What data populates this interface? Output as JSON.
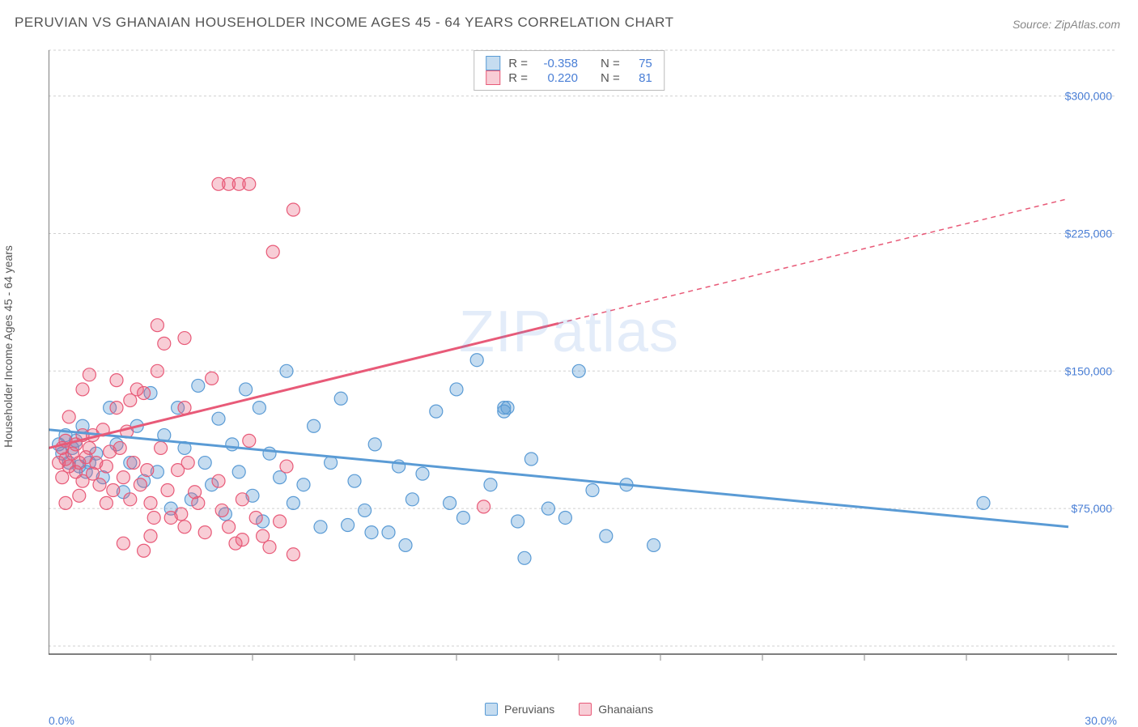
{
  "title": "PERUVIAN VS GHANAIAN HOUSEHOLDER INCOME AGES 45 - 64 YEARS CORRELATION CHART",
  "source": "Source: ZipAtlas.com",
  "watermark": "ZIPatlas",
  "y_axis_label": "Householder Income Ages 45 - 64 years",
  "chart": {
    "type": "scatter",
    "background_color": "#ffffff",
    "grid_color": "#d0d0d0",
    "grid_dash": "3,3",
    "axis_color": "#888888",
    "xlim": [
      0,
      30
    ],
    "ylim": [
      0,
      325000
    ],
    "x_tick_labels": {
      "left": "0.0%",
      "right": "30.0%"
    },
    "x_label_color": "#4a7fd6",
    "y_tick_values": [
      75000,
      150000,
      225000,
      300000
    ],
    "y_tick_labels": [
      "$75,000",
      "$150,000",
      "$225,000",
      "$300,000"
    ],
    "y_tick_color": "#4a7fd6",
    "y_tick_fontsize": 14,
    "x_minor_ticks": [
      3,
      6,
      9,
      12,
      15,
      18,
      21,
      24,
      27,
      30
    ],
    "marker_radius": 8,
    "marker_stroke_width": 1.2,
    "marker_fill_opacity": 0.35,
    "trend_line_width": 3,
    "series": [
      {
        "name": "Peruvians",
        "color": "#5a9bd5",
        "fill": "rgba(90,155,213,0.35)",
        "r": -0.358,
        "n": 75,
        "trend": {
          "x1": 0,
          "y1": 118000,
          "x2": 30,
          "y2": 65000,
          "dashed_from": null
        },
        "points": [
          [
            0.3,
            110000
          ],
          [
            0.4,
            105000
          ],
          [
            0.5,
            115000
          ],
          [
            0.6,
            100000
          ],
          [
            0.7,
            108000
          ],
          [
            0.8,
            112000
          ],
          [
            0.9,
            98000
          ],
          [
            1.0,
            120000
          ],
          [
            1.1,
            95000
          ],
          [
            1.2,
            100000
          ],
          [
            1.4,
            105000
          ],
          [
            1.6,
            92000
          ],
          [
            1.8,
            130000
          ],
          [
            2.0,
            110000
          ],
          [
            2.2,
            84000
          ],
          [
            2.4,
            100000
          ],
          [
            2.6,
            120000
          ],
          [
            2.8,
            90000
          ],
          [
            3.0,
            138000
          ],
          [
            3.2,
            95000
          ],
          [
            3.4,
            115000
          ],
          [
            3.6,
            75000
          ],
          [
            3.8,
            130000
          ],
          [
            4.0,
            108000
          ],
          [
            4.2,
            80000
          ],
          [
            4.4,
            142000
          ],
          [
            4.6,
            100000
          ],
          [
            4.8,
            88000
          ],
          [
            5.0,
            124000
          ],
          [
            5.2,
            72000
          ],
          [
            5.4,
            110000
          ],
          [
            5.6,
            95000
          ],
          [
            5.8,
            140000
          ],
          [
            6.0,
            82000
          ],
          [
            6.2,
            130000
          ],
          [
            6.5,
            105000
          ],
          [
            6.8,
            92000
          ],
          [
            7.0,
            150000
          ],
          [
            7.2,
            78000
          ],
          [
            7.5,
            88000
          ],
          [
            7.8,
            120000
          ],
          [
            8.0,
            65000
          ],
          [
            8.3,
            100000
          ],
          [
            8.6,
            135000
          ],
          [
            9.0,
            90000
          ],
          [
            9.3,
            74000
          ],
          [
            9.6,
            110000
          ],
          [
            10.0,
            62000
          ],
          [
            10.3,
            98000
          ],
          [
            10.7,
            80000
          ],
          [
            11.0,
            94000
          ],
          [
            11.4,
            128000
          ],
          [
            11.8,
            78000
          ],
          [
            12.2,
            70000
          ],
          [
            12.6,
            156000
          ],
          [
            13.0,
            88000
          ],
          [
            13.4,
            130000
          ],
          [
            13.4,
            128000
          ],
          [
            13.8,
            68000
          ],
          [
            14.2,
            102000
          ],
          [
            14.7,
            75000
          ],
          [
            15.2,
            70000
          ],
          [
            15.6,
            150000
          ],
          [
            16.0,
            85000
          ],
          [
            16.4,
            60000
          ],
          [
            17.0,
            88000
          ],
          [
            17.8,
            55000
          ],
          [
            13.5,
            130000
          ],
          [
            14.0,
            48000
          ],
          [
            9.5,
            62000
          ],
          [
            10.5,
            55000
          ],
          [
            12.0,
            140000
          ],
          [
            27.5,
            78000
          ],
          [
            8.8,
            66000
          ],
          [
            6.3,
            68000
          ]
        ]
      },
      {
        "name": "Ghanaians",
        "color": "#e85a78",
        "fill": "rgba(232,90,120,0.30)",
        "r": 0.22,
        "n": 81,
        "trend": {
          "x1": 0,
          "y1": 108000,
          "x2": 30,
          "y2": 244000,
          "dashed_from": 15
        },
        "points": [
          [
            0.3,
            100000
          ],
          [
            0.4,
            108000
          ],
          [
            0.5,
            102000
          ],
          [
            0.5,
            112000
          ],
          [
            0.6,
            98000
          ],
          [
            0.7,
            105000
          ],
          [
            0.8,
            110000
          ],
          [
            0.8,
            95000
          ],
          [
            0.9,
            100000
          ],
          [
            1.0,
            115000
          ],
          [
            1.0,
            90000
          ],
          [
            1.1,
            103000
          ],
          [
            1.2,
            108000
          ],
          [
            1.3,
            94000
          ],
          [
            1.3,
            115000
          ],
          [
            1.4,
            100000
          ],
          [
            1.5,
            88000
          ],
          [
            1.6,
            118000
          ],
          [
            1.7,
            98000
          ],
          [
            1.8,
            106000
          ],
          [
            1.9,
            85000
          ],
          [
            2.0,
            130000
          ],
          [
            2.1,
            108000
          ],
          [
            2.2,
            92000
          ],
          [
            2.3,
            117000
          ],
          [
            2.4,
            80000
          ],
          [
            2.5,
            100000
          ],
          [
            2.6,
            140000
          ],
          [
            2.7,
            88000
          ],
          [
            2.8,
            138000
          ],
          [
            2.9,
            96000
          ],
          [
            3.0,
            78000
          ],
          [
            3.1,
            70000
          ],
          [
            3.2,
            150000
          ],
          [
            3.3,
            108000
          ],
          [
            3.5,
            85000
          ],
          [
            3.6,
            70000
          ],
          [
            3.8,
            96000
          ],
          [
            3.9,
            72000
          ],
          [
            4.0,
            130000
          ],
          [
            4.0,
            65000
          ],
          [
            4.1,
            100000
          ],
          [
            4.3,
            84000
          ],
          [
            4.4,
            78000
          ],
          [
            4.6,
            62000
          ],
          [
            4.8,
            146000
          ],
          [
            5.0,
            90000
          ],
          [
            5.1,
            74000
          ],
          [
            5.3,
            65000
          ],
          [
            5.5,
            56000
          ],
          [
            5.7,
            80000
          ],
          [
            5.7,
            58000
          ],
          [
            5.9,
            112000
          ],
          [
            6.1,
            70000
          ],
          [
            6.3,
            60000
          ],
          [
            6.5,
            54000
          ],
          [
            6.8,
            68000
          ],
          [
            7.0,
            98000
          ],
          [
            7.2,
            50000
          ],
          [
            3.4,
            165000
          ],
          [
            3.2,
            175000
          ],
          [
            3.0,
            60000
          ],
          [
            2.0,
            145000
          ],
          [
            2.4,
            134000
          ],
          [
            5.0,
            252000
          ],
          [
            5.3,
            252000
          ],
          [
            5.6,
            252000
          ],
          [
            5.9,
            252000
          ],
          [
            7.2,
            238000
          ],
          [
            6.6,
            215000
          ],
          [
            4.0,
            168000
          ],
          [
            1.2,
            148000
          ],
          [
            1.0,
            140000
          ],
          [
            0.6,
            125000
          ],
          [
            0.4,
            92000
          ],
          [
            0.9,
            82000
          ],
          [
            0.5,
            78000
          ],
          [
            1.7,
            78000
          ],
          [
            2.2,
            56000
          ],
          [
            2.8,
            52000
          ],
          [
            12.8,
            76000
          ]
        ]
      }
    ]
  },
  "legend": {
    "bottom": [
      {
        "label": "Peruvians",
        "fill": "rgba(90,155,213,0.35)",
        "stroke": "#5a9bd5"
      },
      {
        "label": "Ghanaians",
        "fill": "rgba(232,90,120,0.30)",
        "stroke": "#e85a78"
      }
    ]
  },
  "stat_box": {
    "rows": [
      {
        "fill": "rgba(90,155,213,0.35)",
        "stroke": "#5a9bd5",
        "r": "-0.358",
        "n": "75"
      },
      {
        "fill": "rgba(232,90,120,0.30)",
        "stroke": "#e85a78",
        "r": "0.220",
        "n": "81"
      }
    ],
    "r_label": "R =",
    "n_label": "N ="
  }
}
